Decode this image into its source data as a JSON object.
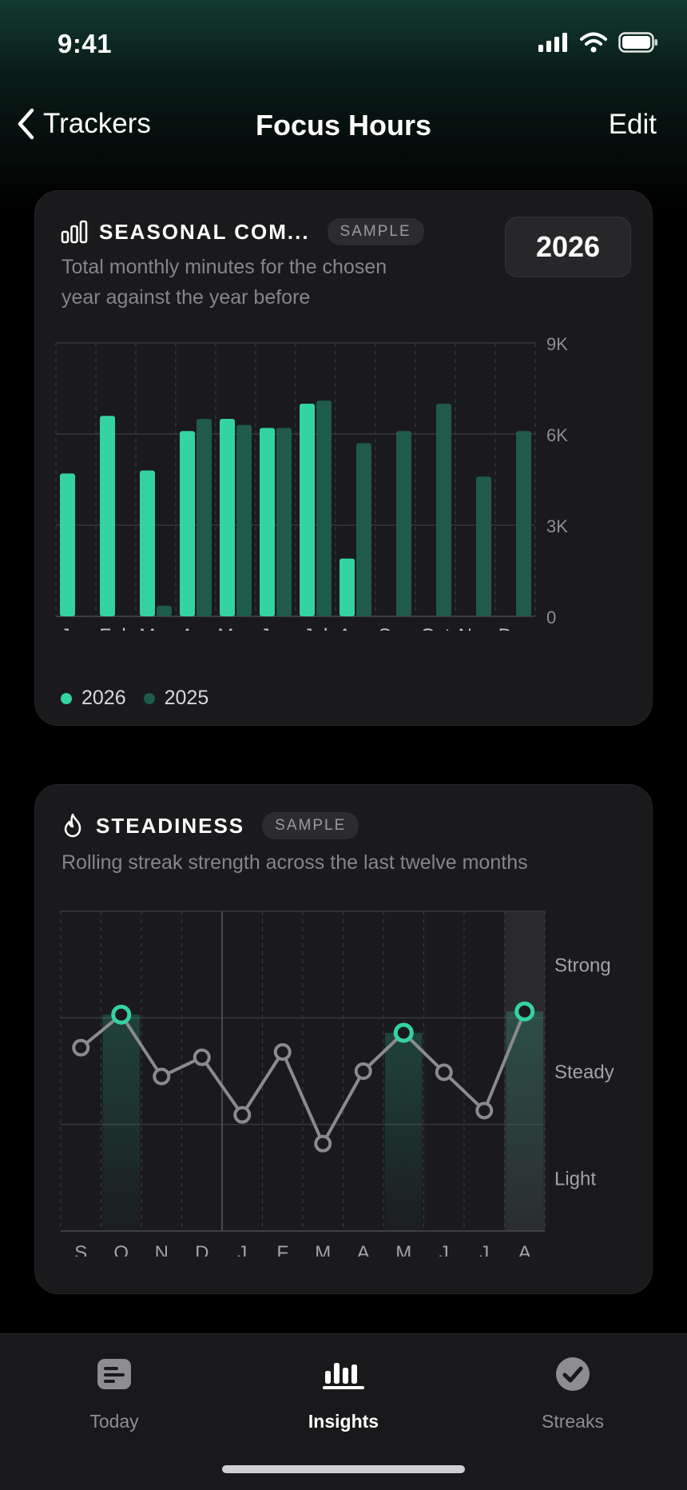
{
  "status_bar": {
    "time": "9:41"
  },
  "nav": {
    "back_label": "Trackers",
    "title": "Focus Hours",
    "edit_label": "Edit"
  },
  "colors": {
    "accent": "#34d3a2",
    "previous_year": "#1f5a4b",
    "background": "#000000",
    "card": "#1a1a1c"
  },
  "seasonal_card": {
    "icon": "bar-chart-icon",
    "title": "SEASONAL COM...",
    "badge": "SAMPLE",
    "subtitle_line1": "Total monthly minutes for the chosen",
    "subtitle_line2": "year against the year before",
    "year": "2026",
    "legend": [
      {
        "label": "2026",
        "color": "#34d3a2"
      },
      {
        "label": "2025",
        "color": "#1f5a4b"
      }
    ]
  },
  "steadiness_card": {
    "icon": "flame-icon",
    "title": "STEADINESS",
    "badge": "SAMPLE",
    "subtitle": "Rolling streak strength across the last twelve months"
  },
  "chart_data": [
    {
      "type": "bar",
      "categories": [
        "Jan",
        "Feb",
        "Mar",
        "Apr",
        "May",
        "Jun",
        "Jul",
        "Aug",
        "Sep",
        "Oct",
        "Nov",
        "Dec"
      ],
      "series": [
        {
          "name": "2026",
          "values": [
            4700,
            6600,
            4800,
            6100,
            6500,
            6200,
            7000,
            1900,
            null,
            null,
            null,
            null
          ]
        },
        {
          "name": "2025",
          "values": [
            null,
            null,
            350,
            6500,
            6300,
            6200,
            7100,
            5700,
            6100,
            7000,
            4600,
            6100
          ]
        }
      ],
      "yticks": [
        "0",
        "3K",
        "6K",
        "9K"
      ],
      "ylim": [
        0,
        9000
      ],
      "grid": true,
      "legend_position": "bottom-left"
    },
    {
      "type": "line",
      "categories": [
        "S",
        "O",
        "N",
        "D",
        "J",
        "F",
        "M",
        "A",
        "M",
        "J",
        "J",
        "A"
      ],
      "values": [
        1.72,
        2.03,
        1.45,
        1.63,
        1.09,
        1.68,
        0.82,
        1.5,
        1.86,
        1.49,
        1.13,
        2.06
      ],
      "highlighted_indices": [
        1,
        8,
        11
      ],
      "ylabels": [
        "Light",
        "Steady",
        "Strong"
      ],
      "ylim": [
        0,
        3
      ],
      "grid": true
    }
  ],
  "tabs": [
    {
      "label": "Today",
      "icon": "today-icon",
      "active": false
    },
    {
      "label": "Insights",
      "icon": "insights-icon",
      "active": true
    },
    {
      "label": "Streaks",
      "icon": "streaks-icon",
      "active": false
    }
  ]
}
